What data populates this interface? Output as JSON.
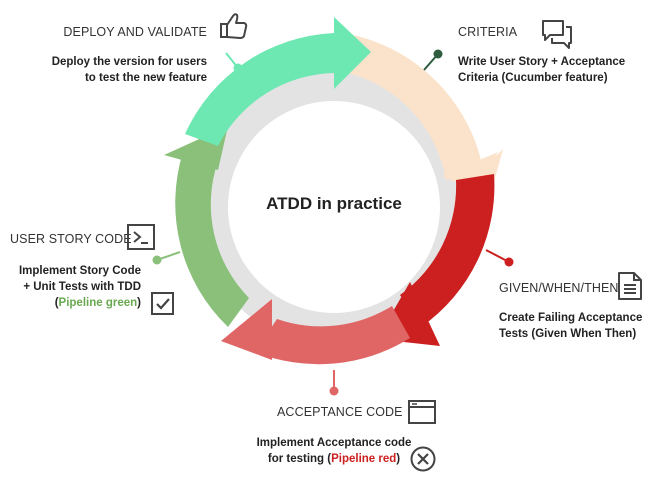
{
  "title": "ATDD in practice",
  "stages": {
    "deploy": {
      "label": "DEPLOY AND VALIDATE",
      "line1": "Deploy the version for users",
      "line2": "to test the new feature",
      "icon": "thumbs-up-icon",
      "color": "#6de8b2"
    },
    "criteria": {
      "label": "CRITERIA",
      "line1": "Write User Story + Acceptance",
      "line2": "Criteria (Cucumber feature)",
      "icon": "chat-bubbles-icon",
      "color": "#fbe3cb"
    },
    "given": {
      "label": "GIVEN/WHEN/THEN",
      "line1": "Create Failing Acceptance",
      "line2": "Tests (Given When Then)",
      "icon": "document-icon",
      "color": "#cc1f1f"
    },
    "acceptance": {
      "label": "ACCEPTANCE CODE",
      "line1": "Implement Acceptance code",
      "line2_prefix": "for testing (",
      "line2_status": "Pipeline red",
      "line2_suffix": ")",
      "icon": "browser-window-icon",
      "status_icon": "x-circle-icon",
      "color": "#e06565",
      "status_color": "#cc1f1f"
    },
    "userstory": {
      "label": "USER STORY CODE",
      "line1": "Implement Story Code",
      "line2": "+ Unit Tests  with TDD",
      "line3_prefix": "(",
      "line3_status": "Pipeline green",
      "line3_suffix": ")",
      "icon": "terminal-icon",
      "status_icon": "checkbox-icon",
      "color": "#8bc07a",
      "status_color": "#6aa84f"
    }
  },
  "inner_ring_color": "#e3e3e3"
}
